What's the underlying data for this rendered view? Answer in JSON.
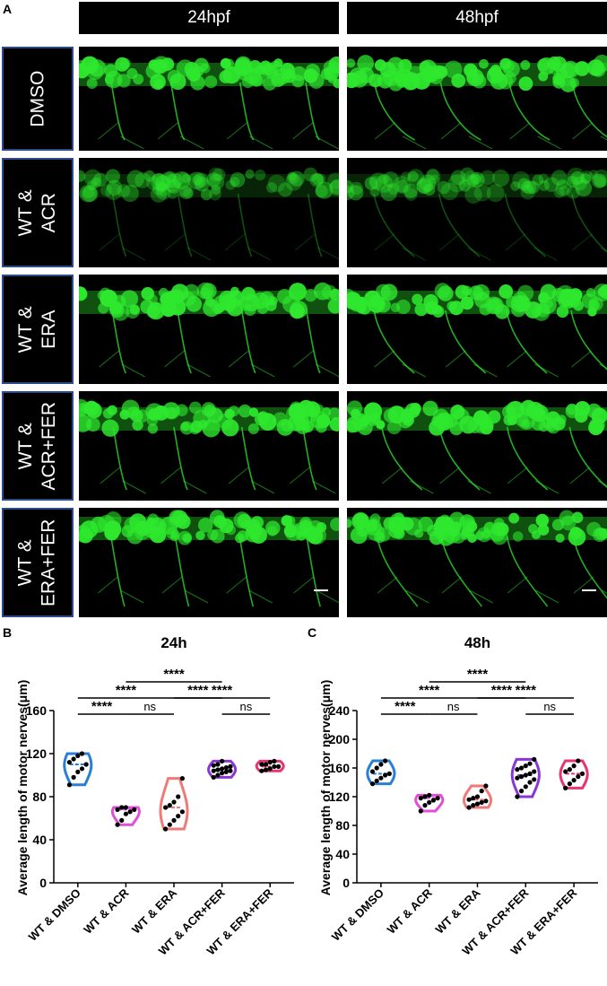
{
  "figure": {
    "panel_a": "A",
    "panel_b": "B",
    "panel_c": "C",
    "columns": [
      "24hpf",
      "48hpf"
    ],
    "rows": [
      "DMSO",
      "WT &\nACR",
      "WT &\nERA",
      "WT &\nACR+FER",
      "WT &\nERA+FER"
    ],
    "colors": {
      "fluorescence": "#2ee82e",
      "label_border": "#2f4a8a",
      "row_bg": "#000000"
    }
  },
  "chart_data": [
    {
      "type": "violin",
      "title": "24h",
      "ylabel": "Average length of motor nerves(μm)",
      "xlabel": "",
      "ylim": [
        0,
        160
      ],
      "yticks": [
        "0",
        "40",
        "80",
        "120",
        "160"
      ],
      "categories": [
        "WT & DMSO",
        "WT & ACR",
        "WT & ERA",
        "WT & ACR+FER",
        "WT & ERA+FER"
      ],
      "colors": [
        "#2a7fd4",
        "#e04fd8",
        "#f07a78",
        "#8a35d6",
        "#e8346f"
      ],
      "series": [
        {
          "values": [
            91,
            98,
            103,
            106,
            110,
            112,
            115,
            118,
            120
          ]
        },
        {
          "values": [
            54,
            58,
            64,
            66,
            68,
            68,
            70,
            70
          ]
        },
        {
          "values": [
            50,
            54,
            58,
            62,
            66,
            70,
            72,
            75,
            80,
            97
          ]
        },
        {
          "values": [
            98,
            100,
            102,
            103,
            104,
            104,
            105,
            106,
            107,
            108,
            109,
            110,
            113
          ]
        },
        {
          "values": [
            104,
            105,
            106,
            108,
            108,
            110,
            110,
            112,
            113
          ]
        }
      ],
      "significance": [
        {
          "from": 0,
          "to": 1,
          "label": "****"
        },
        {
          "from": 1,
          "to": 2,
          "label": "ns"
        },
        {
          "from": 0,
          "to": 2,
          "label": "****"
        },
        {
          "from": 3,
          "to": 4,
          "label": "ns"
        },
        {
          "from": 2,
          "to": 3,
          "label": "****"
        },
        {
          "from": 2,
          "to": 4,
          "label": "****"
        },
        {
          "from": 1,
          "to": 3,
          "label": "****"
        }
      ]
    },
    {
      "type": "violin",
      "title": "48h",
      "ylabel": "Average length of motor nerves(μm)",
      "xlabel": "",
      "ylim": [
        0,
        240
      ],
      "yticks": [
        "0",
        "40",
        "80",
        "120",
        "160",
        "200",
        "240"
      ],
      "categories": [
        "WT & DMSO",
        "WT & ACR",
        "WT & ERA",
        "WT & ACR+FER",
        "WT & ERA+FER"
      ],
      "colors": [
        "#2a7fd4",
        "#e04fd8",
        "#f07a78",
        "#8a35d6",
        "#e8346f"
      ],
      "series": [
        {
          "values": [
            138,
            142,
            146,
            150,
            152,
            155,
            160,
            165,
            170
          ]
        },
        {
          "values": [
            100,
            108,
            112,
            115,
            118,
            118,
            120,
            122
          ]
        },
        {
          "values": [
            105,
            108,
            110,
            112,
            114,
            116,
            118,
            120,
            128,
            135
          ]
        },
        {
          "values": [
            120,
            128,
            134,
            140,
            144,
            146,
            148,
            150,
            152,
            155,
            158,
            160,
            163,
            166,
            172
          ]
        },
        {
          "values": [
            132,
            138,
            143,
            148,
            152,
            155,
            158,
            163,
            170
          ]
        }
      ],
      "significance": [
        {
          "from": 0,
          "to": 1,
          "label": "****"
        },
        {
          "from": 1,
          "to": 2,
          "label": "ns"
        },
        {
          "from": 0,
          "to": 2,
          "label": "****"
        },
        {
          "from": 3,
          "to": 4,
          "label": "ns"
        },
        {
          "from": 2,
          "to": 3,
          "label": "****"
        },
        {
          "from": 2,
          "to": 4,
          "label": "****"
        },
        {
          "from": 1,
          "to": 3,
          "label": "****"
        }
      ]
    }
  ]
}
